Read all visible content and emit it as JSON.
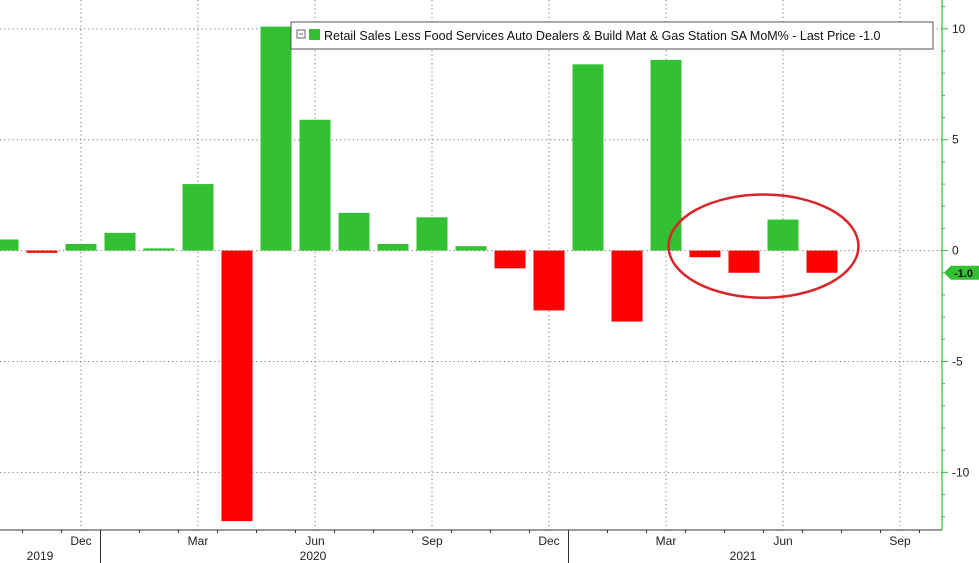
{
  "chart_data": {
    "type": "bar",
    "legend": "Retail Sales Less Food Services Auto Dealers & Build Mat & Gas Station SA MoM% - Last Price -1.0",
    "last_value_label": "-1.0",
    "y_ticks": [
      10,
      5,
      0,
      -5,
      -10
    ],
    "ylim": [
      -12.6,
      11.3
    ],
    "month_ticks": [
      "Dec",
      "Mar",
      "Jun",
      "Sep",
      "Dec",
      "Mar",
      "Jun",
      "Sep"
    ],
    "year_labels": [
      "2019",
      "2020",
      "2021"
    ],
    "categories": [
      "2019-10",
      "2019-11",
      "2019-12",
      "2020-01",
      "2020-02",
      "2020-03",
      "2020-04",
      "2020-05",
      "2020-06",
      "2020-07",
      "2020-08",
      "2020-09",
      "2020-10",
      "2020-11",
      "2020-12",
      "2021-01",
      "2021-02",
      "2021-03",
      "2021-04",
      "2021-05",
      "2021-06",
      "2021-07"
    ],
    "values": [
      0.5,
      -0.1,
      0.3,
      0.8,
      0.1,
      3.0,
      -12.2,
      10.1,
      5.9,
      1.7,
      0.3,
      1.5,
      0.2,
      -0.8,
      -2.7,
      8.4,
      -3.2,
      8.6,
      -0.3,
      -1.0,
      1.4,
      -1.0
    ],
    "colors": {
      "positive": "#33c033",
      "negative": "#ff0000",
      "axis": "#33c033",
      "highlight_circle": "#d9262b"
    },
    "highlight": {
      "shape": "ellipse",
      "categories": [
        "2021-04",
        "2021-05",
        "2021-06",
        "2021-07"
      ]
    }
  }
}
